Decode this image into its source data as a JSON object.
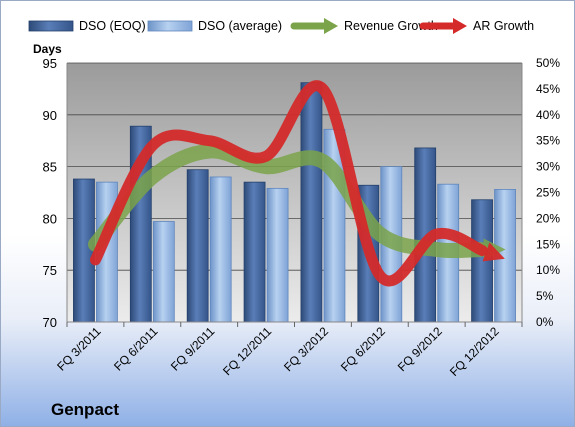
{
  "chart_data": {
    "type": "bar",
    "title": "Genpact",
    "ylabel": "Days",
    "y2label": "",
    "ylim": [
      70,
      95
    ],
    "y2lim": [
      0,
      0.5
    ],
    "y_ticks": [
      70,
      75,
      80,
      85,
      90,
      95
    ],
    "y2_ticks": [
      "0%",
      "5%",
      "10%",
      "15%",
      "20%",
      "25%",
      "30%",
      "35%",
      "40%",
      "45%",
      "50%"
    ],
    "categories": [
      "FQ 3/2011",
      "FQ 6/2011",
      "FQ 9/2011",
      "FQ 12/2011",
      "FQ 3/2012",
      "FQ 6/2012",
      "FQ 9/2012",
      "FQ 12/2012"
    ],
    "series": [
      {
        "name": "DSO (EOQ)",
        "type": "bar",
        "axis": "left",
        "color": "#3f5f93",
        "values": [
          83.8,
          88.9,
          84.7,
          83.5,
          93.1,
          83.2,
          86.8,
          81.8
        ]
      },
      {
        "name": "DSO (average)",
        "type": "bar",
        "axis": "left",
        "color": "#8fb3e0",
        "values": [
          83.5,
          79.7,
          84.0,
          82.9,
          88.6,
          85.0,
          83.3,
          82.8
        ]
      },
      {
        "name": "Revenue Growth",
        "type": "line",
        "axis": "right",
        "color": "#7aa34a",
        "values": [
          0.15,
          0.28,
          0.33,
          0.3,
          0.31,
          0.17,
          0.14,
          0.14
        ]
      },
      {
        "name": "AR Growth",
        "type": "line",
        "axis": "right",
        "color": "#d42a2a",
        "values": [
          0.12,
          0.34,
          0.35,
          0.32,
          0.45,
          0.09,
          0.17,
          0.13
        ]
      }
    ],
    "legend_position": "top",
    "grid": true
  }
}
